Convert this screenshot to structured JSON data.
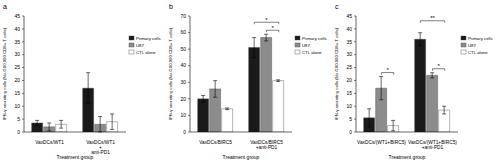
{
  "chart_data": [
    {
      "type": "bar",
      "title": "a",
      "x_label": "Treatment group",
      "y_label": "IFN-γ secreting cells (No./200,000 CD8+ T cells)",
      "categories": [
        "VaxDCs/WT1",
        "VaxDCs/WT1 + anti-PD1"
      ],
      "series": [
        {
          "name": "Primary cells",
          "color": "#1a1a1a",
          "values": [
            3.5,
            17
          ],
          "errors": [
            1,
            6
          ]
        },
        {
          "name": "U87",
          "color": "#8c8c8c",
          "values": [
            2,
            3
          ],
          "errors": [
            1.5,
            3
          ]
        },
        {
          "name": "CTL alone",
          "color": "#ffffff",
          "values": [
            3,
            4
          ],
          "errors": [
            1.5,
            3
          ]
        }
      ],
      "ylim": [
        0,
        45
      ],
      "yticks": [
        0,
        5,
        10,
        15,
        20,
        25,
        30,
        35,
        40,
        45
      ],
      "grid": false,
      "legend": "right",
      "annotations": []
    },
    {
      "type": "bar",
      "title": "b",
      "x_label": "Treatment group",
      "y_label": "IFN-γ secreting cells (No./200,000 CD8+ T cells)",
      "categories": [
        "VaxDCs/BIRC5",
        "VaxDCs/BIRC5 +anti-PD1"
      ],
      "series": [
        {
          "name": "Primary cells",
          "color": "#1a1a1a",
          "values": [
            20,
            51
          ],
          "errors": [
            2,
            6
          ]
        },
        {
          "name": "U87",
          "color": "#8c8c8c",
          "values": [
            26,
            57
          ],
          "errors": [
            5,
            2
          ]
        },
        {
          "name": "CTL alone",
          "color": "#ffffff",
          "values": [
            14,
            31
          ],
          "errors": [
            0.5,
            0.5
          ]
        }
      ],
      "ylim": [
        0,
        70
      ],
      "yticks": [
        0,
        10,
        20,
        30,
        40,
        50,
        60,
        70
      ],
      "grid": false,
      "legend": "right",
      "annotations": [
        {
          "text": "*",
          "category": "VaxDCs/BIRC5 +anti-PD1",
          "between": [
            "U87",
            "CTL alone"
          ]
        },
        {
          "text": "*",
          "category": "VaxDCs/BIRC5 +anti-PD1",
          "between": [
            "Primary cells",
            "CTL alone"
          ]
        }
      ]
    },
    {
      "type": "bar",
      "title": "c",
      "x_label": "Treatment group",
      "y_label": "IFN-γ secreting cells (No./200,000 CD8+ T cells)",
      "categories": [
        "VaxDCs/(WT1+BIRC5)",
        "VaxDCs/(WT1+BIRC5) +anti-PD1"
      ],
      "series": [
        {
          "name": "Primary cells",
          "color": "#1a1a1a",
          "values": [
            5.5,
            36
          ],
          "errors": [
            3.5,
            2.5
          ]
        },
        {
          "name": "U87",
          "color": "#8c8c8c",
          "values": [
            17,
            22
          ],
          "errors": [
            4.5,
            1
          ]
        },
        {
          "name": "CTL alone",
          "color": "#ffffff",
          "values": [
            2.5,
            8.5
          ],
          "errors": [
            2,
            1.5
          ]
        }
      ],
      "ylim": [
        0,
        45
      ],
      "yticks": [
        0,
        5,
        10,
        15,
        20,
        25,
        30,
        35,
        40,
        45
      ],
      "grid": false,
      "legend": "right",
      "annotations": [
        {
          "text": "*",
          "category": "VaxDCs/(WT1+BIRC5)",
          "between": [
            "U87",
            "CTL alone"
          ]
        },
        {
          "text": "*",
          "category": "VaxDCs/(WT1+BIRC5) +anti-PD1",
          "between": [
            "U87",
            "CTL alone"
          ]
        },
        {
          "text": "**",
          "category": "VaxDCs/(WT1+BIRC5) +anti-PD1",
          "between": [
            "Primary cells",
            "CTL alone"
          ]
        }
      ]
    }
  ]
}
